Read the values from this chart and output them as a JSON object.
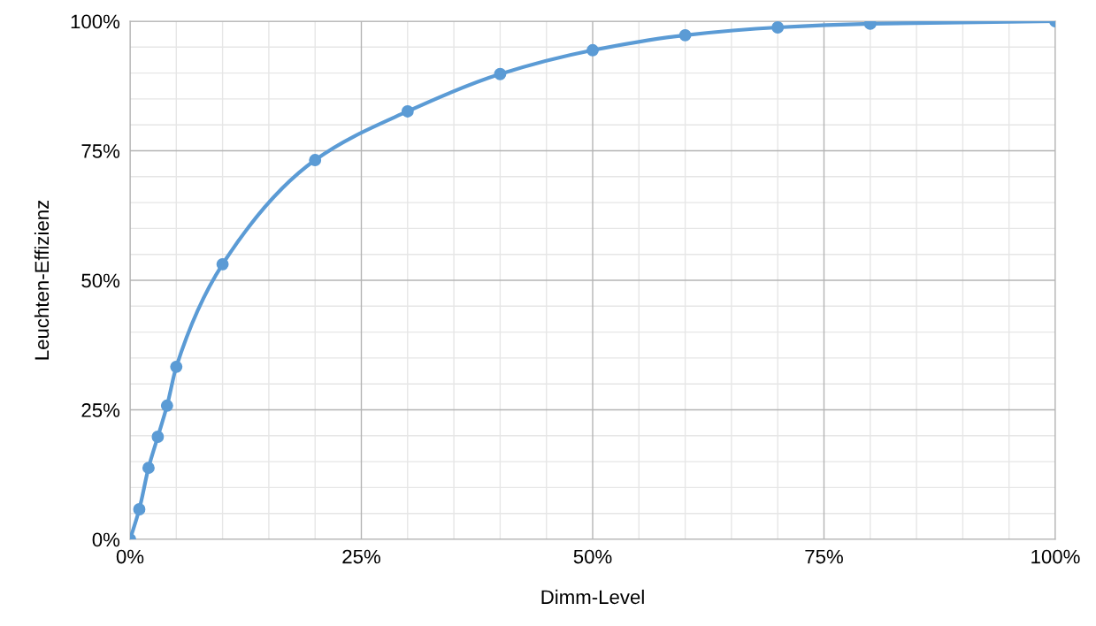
{
  "chart_data": {
    "type": "line",
    "xlabel": "Dimm-Level",
    "ylabel": "Leuchten-Effizienz",
    "x": [
      0,
      1,
      2,
      3,
      4,
      5,
      10,
      20,
      30,
      40,
      50,
      60,
      70,
      80,
      100
    ],
    "series": [
      {
        "color": "#5b9bd5",
        "values": [
          0,
          5.8,
          13.8,
          19.8,
          25.8,
          33.3,
          53.1,
          73.2,
          82.6,
          89.8,
          94.4,
          97.3,
          98.8,
          99.5,
          100
        ]
      }
    ],
    "xlim": [
      0,
      100
    ],
    "ylim": [
      0,
      100
    ],
    "xticks": [
      {
        "value": 0,
        "label": "0%"
      },
      {
        "value": 5,
        "label": null
      },
      {
        "value": 10,
        "label": null
      },
      {
        "value": 15,
        "label": null
      },
      {
        "value": 20,
        "label": null
      },
      {
        "value": 25,
        "label": "25%"
      },
      {
        "value": 30,
        "label": null
      },
      {
        "value": 35,
        "label": null
      },
      {
        "value": 40,
        "label": null
      },
      {
        "value": 45,
        "label": null
      },
      {
        "value": 50,
        "label": "50%"
      },
      {
        "value": 55,
        "label": null
      },
      {
        "value": 60,
        "label": null
      },
      {
        "value": 65,
        "label": null
      },
      {
        "value": 70,
        "label": null
      },
      {
        "value": 75,
        "label": "75%"
      },
      {
        "value": 80,
        "label": null
      },
      {
        "value": 85,
        "label": null
      },
      {
        "value": 90,
        "label": null
      },
      {
        "value": 95,
        "label": null
      },
      {
        "value": 100,
        "label": "100%"
      }
    ],
    "yticks": [
      {
        "value": 0,
        "label": "0%"
      },
      {
        "value": 5,
        "label": null
      },
      {
        "value": 10,
        "label": null
      },
      {
        "value": 15,
        "label": null
      },
      {
        "value": 20,
        "label": null
      },
      {
        "value": 25,
        "label": "25%"
      },
      {
        "value": 30,
        "label": null
      },
      {
        "value": 35,
        "label": null
      },
      {
        "value": 40,
        "label": null
      },
      {
        "value": 45,
        "label": null
      },
      {
        "value": 50,
        "label": "50%"
      },
      {
        "value": 55,
        "label": null
      },
      {
        "value": 60,
        "label": null
      },
      {
        "value": 65,
        "label": null
      },
      {
        "value": 70,
        "label": null
      },
      {
        "value": 75,
        "label": "75%"
      },
      {
        "value": 80,
        "label": null
      },
      {
        "value": 85,
        "label": null
      },
      {
        "value": 90,
        "label": null
      },
      {
        "value": 95,
        "label": null
      },
      {
        "value": 100,
        "label": "100%"
      }
    ],
    "grid": true,
    "marker": "circle",
    "line_style": "solid",
    "legend": false
  }
}
